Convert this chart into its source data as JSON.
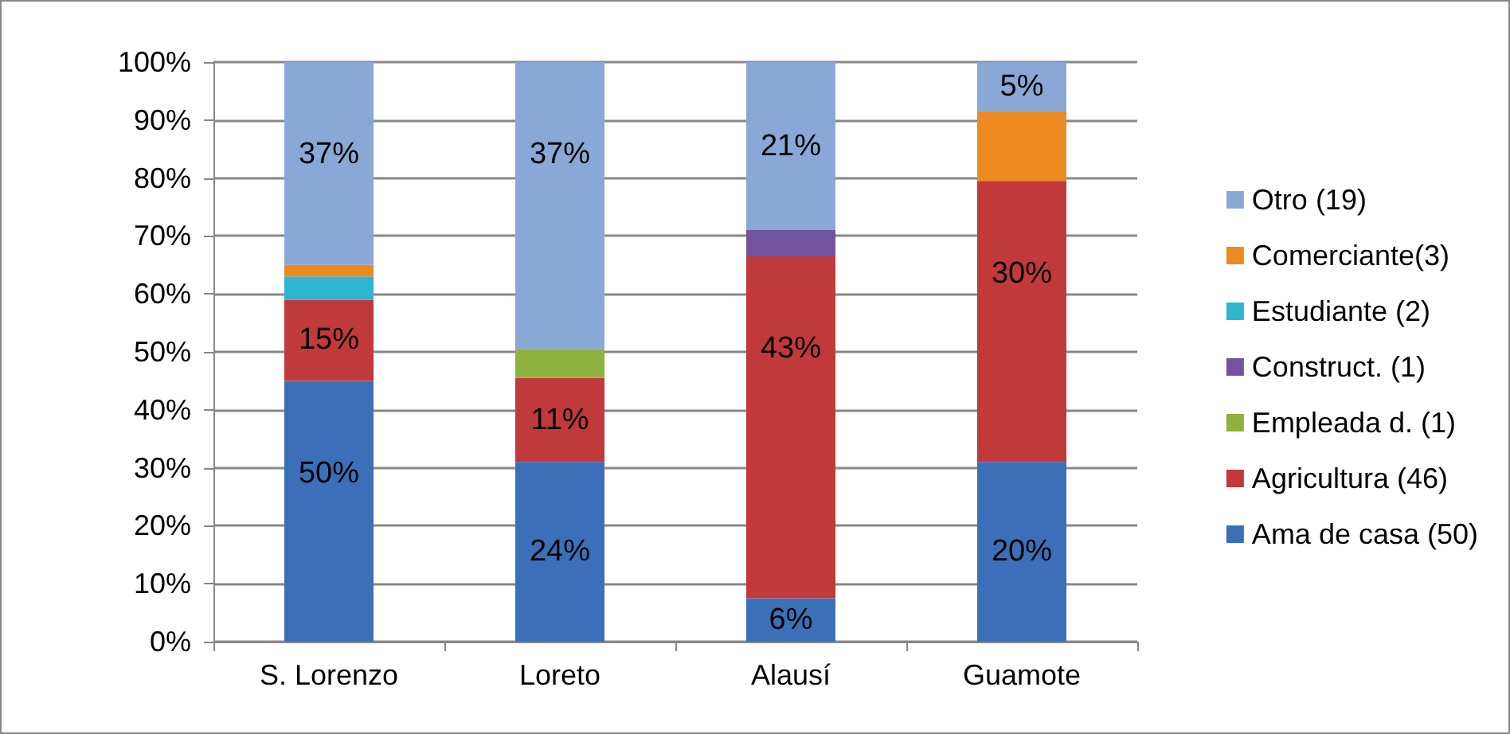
{
  "chart_data": {
    "type": "bar",
    "stacked": true,
    "categories": [
      "S. Lorenzo",
      "Loreto",
      "Alausí",
      "Guamote"
    ],
    "series": [
      {
        "name": "Ama de casa (50)",
        "color": "#3b70b8",
        "values": [
          45,
          31,
          7.5,
          31
        ]
      },
      {
        "name": "Agricultura (46)",
        "color": "#c0393b",
        "values": [
          14,
          14.5,
          59,
          48.5
        ]
      },
      {
        "name": "Empleada d. (1)",
        "color": "#8db23e",
        "values": [
          0,
          5,
          0,
          0
        ]
      },
      {
        "name": "Construct. (1)",
        "color": "#7253a0",
        "values": [
          0,
          0,
          4.5,
          0
        ]
      },
      {
        "name": "Estudiante (2)",
        "color": "#2eb5cf",
        "values": [
          4,
          0,
          0,
          0
        ]
      },
      {
        "name": "Comerciante(3)",
        "color": "#ee8a22",
        "values": [
          2,
          0,
          0,
          12
        ]
      },
      {
        "name": "Otro (19)",
        "color": "#8aa8d6",
        "values": [
          35,
          49.5,
          29,
          8.5
        ]
      }
    ],
    "annotations": [
      {
        "text": "50%",
        "x": "S. Lorenzo",
        "y": 45
      },
      {
        "text": "15%",
        "x": "S. Lorenzo",
        "y": 59
      },
      {
        "text": "37%",
        "x": "S. Lorenzo",
        "y": 100
      },
      {
        "text": "24%",
        "x": "Loreto",
        "y": 31
      },
      {
        "text": "11%",
        "x": "Loreto",
        "y": 45.5
      },
      {
        "text": "37%",
        "x": "Loreto",
        "y": 100
      },
      {
        "text": "6%",
        "x": "Alausí",
        "y": 7.5
      },
      {
        "text": "43%",
        "x": "Alausí",
        "y": 66.5
      },
      {
        "text": "21%",
        "x": "Alausí",
        "y": 100
      },
      {
        "text": "20%",
        "x": "Guamote",
        "y": 31
      },
      {
        "text": "30%",
        "x": "Guamote",
        "y": 79.5
      },
      {
        "text": "5%",
        "x": "Guamote",
        "y": 100
      }
    ],
    "ylim": [
      0,
      100
    ],
    "yticks": [
      {
        "value": 0,
        "label": "0%"
      },
      {
        "value": 10,
        "label": "10%"
      },
      {
        "value": 20,
        "label": "20%"
      },
      {
        "value": 30,
        "label": "30%"
      },
      {
        "value": 40,
        "label": "40%"
      },
      {
        "value": 50,
        "label": "50%"
      },
      {
        "value": 60,
        "label": "60%"
      },
      {
        "value": 70,
        "label": "70%"
      },
      {
        "value": 80,
        "label": "80%"
      },
      {
        "value": 90,
        "label": "90%"
      },
      {
        "value": 100,
        "label": "100%"
      }
    ],
    "grid": "y",
    "legend": "right"
  }
}
